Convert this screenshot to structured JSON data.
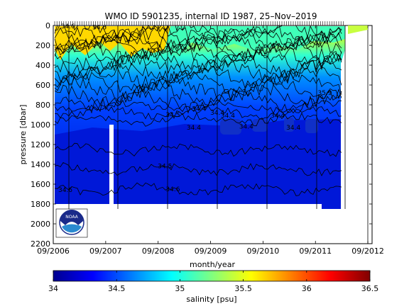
{
  "chart_data": {
    "type": "heatmap",
    "title": "WMO ID 5901235, internal ID 1987, 25–Nov–2019",
    "xlabel": "month/year",
    "ylabel": "pressure [dbar]",
    "x_ticks": [
      "09/2006",
      "09/2007",
      "09/2008",
      "09/2009",
      "09/2010",
      "09/2011",
      "09/2012"
    ],
    "y_ticks": [
      0,
      200,
      400,
      600,
      800,
      1000,
      1200,
      1400,
      1600,
      1800,
      2000,
      2200
    ],
    "ylim": [
      2200,
      0
    ],
    "colorbar": {
      "label": "salinity [psu]",
      "ticks": [
        34,
        34.5,
        35,
        35.5,
        36,
        36.5
      ],
      "range": [
        34,
        36.5
      ],
      "colormap": "jet"
    },
    "contour_labels": [
      {
        "text": "34.6",
        "x": 2006.95,
        "p": 30
      },
      {
        "text": "34.6",
        "x": 2007.55,
        "p": 40
      },
      {
        "text": "34.6",
        "x": 2006.9,
        "p": 1680
      },
      {
        "text": "34.6",
        "x": 2008.95,
        "p": 1670
      },
      {
        "text": "34.5",
        "x": 2008.8,
        "p": 1440
      },
      {
        "text": "34.5",
        "x": 2008.95,
        "p": 920
      },
      {
        "text": "34.4",
        "x": 2009.45,
        "p": 860
      },
      {
        "text": "34.4",
        "x": 2009.8,
        "p": 900
      },
      {
        "text": "34.4",
        "x": 2010.0,
        "p": 930
      },
      {
        "text": "34.4",
        "x": 2009.35,
        "p": 1050
      },
      {
        "text": "34.4",
        "x": 2010.35,
        "p": 1040
      },
      {
        "text": "34.4",
        "x": 2010.95,
        "p": 930
      },
      {
        "text": "34.4",
        "x": 2011.25,
        "p": 1050
      },
      {
        "text": "35.9",
        "x": 2011.85,
        "p": 700
      }
    ],
    "logo": "NOAA"
  }
}
